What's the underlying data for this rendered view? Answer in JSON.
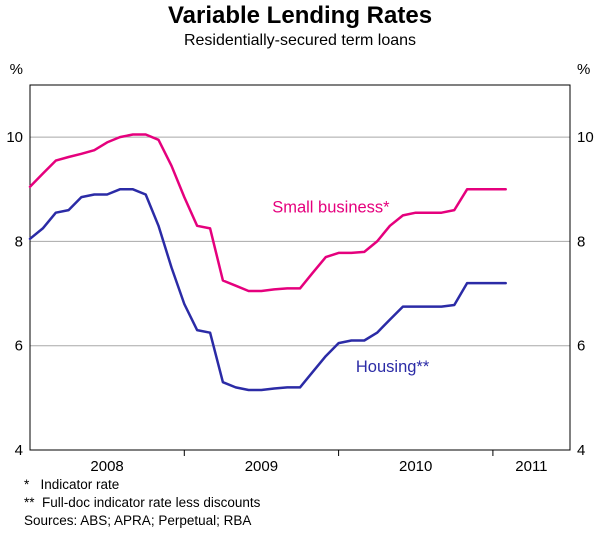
{
  "title": "Variable Lending Rates",
  "subtitle": "Residentially-secured term loans",
  "footnotes": {
    "note1": "*   Indicator rate",
    "note2": "**  Full-doc indicator rate less discounts",
    "sources": "Sources: ABS; APRA; Perpetual; RBA"
  },
  "chart_data": {
    "type": "line",
    "title": "Variable Lending Rates",
    "subtitle": "Residentially-secured term loans",
    "unit_label": "%",
    "ylim": [
      4,
      11
    ],
    "yticks": [
      4,
      6,
      8,
      10
    ],
    "gridlines": [
      6,
      8,
      10
    ],
    "xlim": [
      2008.0,
      2011.5
    ],
    "xticks_boundaries": [
      2009,
      2010,
      2011
    ],
    "xtick_labels": [
      {
        "label": "2008",
        "center": 2008.5
      },
      {
        "label": "2009",
        "center": 2009.5
      },
      {
        "label": "2010",
        "center": 2010.5
      },
      {
        "label": "2011",
        "center": 2011.25
      }
    ],
    "grid": true,
    "legend_position": "inline-annotations",
    "x": [
      2008.0,
      2008.083,
      2008.167,
      2008.25,
      2008.333,
      2008.417,
      2008.5,
      2008.583,
      2008.667,
      2008.75,
      2008.833,
      2008.917,
      2009.0,
      2009.083,
      2009.167,
      2009.25,
      2009.333,
      2009.417,
      2009.5,
      2009.583,
      2009.667,
      2009.75,
      2009.833,
      2009.917,
      2010.0,
      2010.083,
      2010.167,
      2010.25,
      2010.333,
      2010.417,
      2010.5,
      2010.583,
      2010.667,
      2010.75,
      2010.833,
      2010.917,
      2011.0,
      2011.083
    ],
    "series": [
      {
        "name": "Small business*",
        "color": "#e5007d",
        "label_pos": {
          "x": 2009.95,
          "y": 8.55
        },
        "values": [
          9.05,
          9.3,
          9.55,
          9.62,
          9.68,
          9.75,
          9.9,
          10.0,
          10.05,
          10.05,
          9.95,
          9.45,
          8.85,
          8.3,
          8.25,
          7.25,
          7.15,
          7.05,
          7.05,
          7.08,
          7.1,
          7.1,
          7.4,
          7.7,
          7.78,
          7.78,
          7.8,
          8.0,
          8.3,
          8.5,
          8.55,
          8.55,
          8.55,
          8.6,
          9.0,
          9.0,
          9.0,
          9.0
        ]
      },
      {
        "name": "Housing**",
        "color": "#2b2ba6",
        "label_pos": {
          "x": 2010.35,
          "y": 5.5
        },
        "values": [
          8.05,
          8.25,
          8.55,
          8.6,
          8.85,
          8.9,
          8.9,
          9.0,
          9.0,
          8.9,
          8.3,
          7.5,
          6.8,
          6.3,
          6.25,
          5.3,
          5.2,
          5.15,
          5.15,
          5.18,
          5.2,
          5.2,
          5.5,
          5.8,
          6.05,
          6.1,
          6.1,
          6.25,
          6.5,
          6.75,
          6.75,
          6.75,
          6.75,
          6.78,
          7.2,
          7.2,
          7.2,
          7.2
        ]
      }
    ]
  }
}
